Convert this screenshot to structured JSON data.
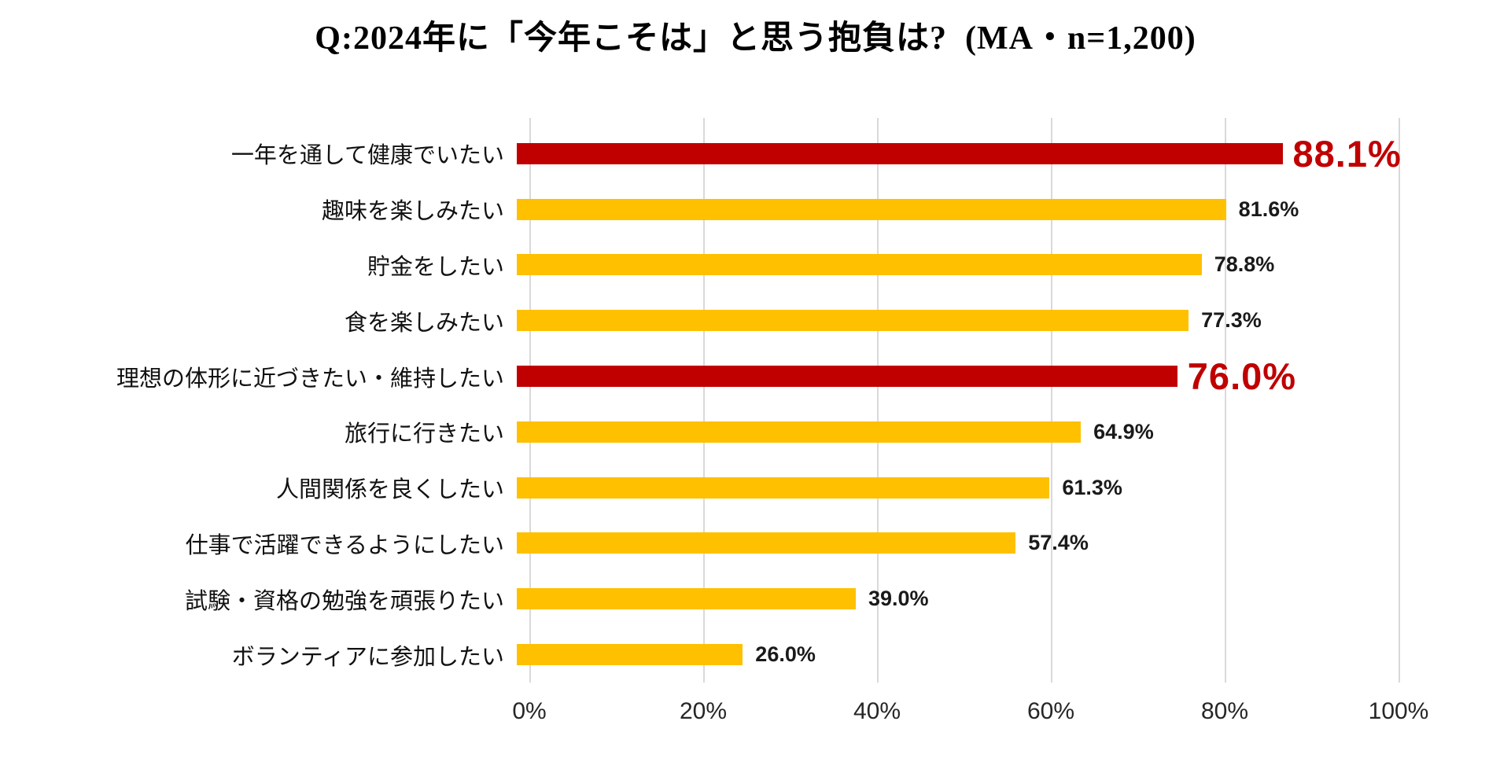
{
  "title": "Q:2024年に「今年こそは」と思う抱負は?  (MA・n=1,200)",
  "chart_data": {
    "type": "bar",
    "orientation": "horizontal",
    "title": "Q:2024年に「今年こそは」と思う抱負は?  (MA・n=1,200)",
    "sample_note": "MA・n=1,200",
    "categories": [
      "一年を通して健康でいたい",
      "趣味を楽しみたい",
      "貯金をしたい",
      "食を楽しみたい",
      "理想の体形に近づきたい・維持したい",
      "旅行に行きたい",
      "人間関係を良くしたい",
      "仕事で活躍できるようにしたい",
      "試験・資格の勉強を頑張りたい",
      "ボランティアに参加したい"
    ],
    "values": [
      88.1,
      81.6,
      78.8,
      77.3,
      76.0,
      64.9,
      61.3,
      57.4,
      39.0,
      26.0
    ],
    "value_labels": [
      "88.1%",
      "81.6%",
      "78.8%",
      "77.3%",
      "76.0%",
      "64.9%",
      "61.3%",
      "57.4%",
      "39.0%",
      "26.0%"
    ],
    "highlighted_indices": [
      0,
      4
    ],
    "x_ticks": [
      "0%",
      "20%",
      "40%",
      "60%",
      "80%",
      "100%"
    ],
    "xlim": [
      0,
      100
    ],
    "grid": "vertical",
    "legend": "none",
    "colors": {
      "bar_default": "#FFC000",
      "bar_highlight": "#C00000",
      "value_label_default": "#1A1A1A",
      "value_label_highlight": "#C00000",
      "gridline": "#D9D9D9",
      "background": "#FFFFFF",
      "category_text": "#111111",
      "axis_text": "#262626",
      "title_text": "#000000"
    }
  }
}
